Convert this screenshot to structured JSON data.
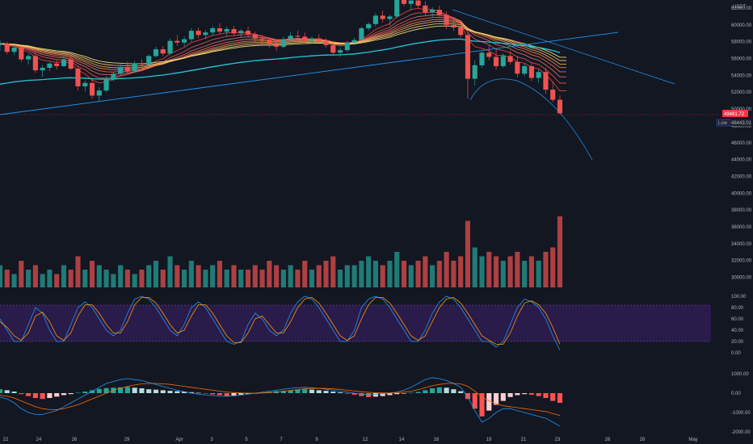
{
  "chart_data": {
    "type": "candlestick",
    "quote_currency": "USDT",
    "price_axis": {
      "min": 28000,
      "max": 63000,
      "ticks": [
        "62000.00",
        "60000.00",
        "58000.00",
        "56000.00",
        "54000.00",
        "52000.00",
        "50000.00",
        "48000.00",
        "46000.00",
        "44000.00",
        "42000.00",
        "40000.00",
        "38000.00",
        "36000.00",
        "34000.00",
        "32000.00",
        "30000.00"
      ]
    },
    "last_price_label": "49481.72",
    "low_label": "Low",
    "low_value_label": "48443.01",
    "time_axis": [
      "22",
      "24",
      "26",
      "29",
      "Apr",
      "3",
      "5",
      "7",
      "9",
      "12",
      "14",
      "16",
      "19",
      "21",
      "23",
      "26",
      "28",
      "May"
    ],
    "candles": [
      [
        57600,
        58200,
        56900,
        57800
      ],
      [
        57800,
        58000,
        56500,
        56800
      ],
      [
        56800,
        57600,
        56400,
        57300
      ],
      [
        57300,
        57500,
        55600,
        55900
      ],
      [
        55900,
        56600,
        55300,
        56300
      ],
      [
        56300,
        56700,
        54300,
        54600
      ],
      [
        54600,
        55200,
        53800,
        54900
      ],
      [
        54900,
        55600,
        54500,
        55400
      ],
      [
        55400,
        55800,
        54700,
        55100
      ],
      [
        55100,
        56200,
        55000,
        55900
      ],
      [
        55900,
        56300,
        54600,
        54800
      ],
      [
        54800,
        55100,
        52200,
        52700
      ],
      [
        52700,
        53400,
        52100,
        53100
      ],
      [
        53100,
        53600,
        51200,
        51600
      ],
      [
        51600,
        52600,
        50900,
        52200
      ],
      [
        52200,
        53900,
        52000,
        53600
      ],
      [
        53600,
        54400,
        53300,
        54200
      ],
      [
        54200,
        55300,
        54000,
        55000
      ],
      [
        55000,
        55600,
        54200,
        54500
      ],
      [
        54500,
        55700,
        54300,
        55400
      ],
      [
        55400,
        55900,
        54900,
        55300
      ],
      [
        55300,
        56500,
        55100,
        56300
      ],
      [
        56300,
        57400,
        56100,
        57100
      ],
      [
        57100,
        57500,
        56300,
        56600
      ],
      [
        56600,
        58400,
        56400,
        58100
      ],
      [
        58100,
        58800,
        57500,
        57900
      ],
      [
        57900,
        58600,
        57400,
        58300
      ],
      [
        58300,
        59600,
        58000,
        59300
      ],
      [
        59300,
        59700,
        58400,
        58800
      ],
      [
        58800,
        59400,
        58300,
        59100
      ],
      [
        59100,
        59900,
        58700,
        59600
      ],
      [
        59600,
        60200,
        58900,
        59200
      ],
      [
        59200,
        59800,
        58600,
        59500
      ],
      [
        59500,
        59900,
        58700,
        59000
      ],
      [
        59000,
        59500,
        58500,
        59300
      ],
      [
        59300,
        59800,
        58600,
        58900
      ],
      [
        58900,
        59200,
        57900,
        58400
      ],
      [
        58400,
        58800,
        57600,
        58200
      ],
      [
        58200,
        58500,
        57300,
        57700
      ],
      [
        57700,
        58100,
        56900,
        57400
      ],
      [
        57400,
        58600,
        57200,
        58300
      ],
      [
        58300,
        59100,
        58000,
        58700
      ],
      [
        58700,
        59300,
        58200,
        58600
      ],
      [
        58600,
        59100,
        57900,
        58100
      ],
      [
        58100,
        58600,
        57800,
        58400
      ],
      [
        58400,
        58900,
        57900,
        58100
      ],
      [
        58100,
        58400,
        57300,
        57600
      ],
      [
        57600,
        57900,
        56300,
        56700
      ],
      [
        56700,
        57300,
        56200,
        57000
      ],
      [
        57000,
        58100,
        56800,
        57900
      ],
      [
        57900,
        58500,
        57600,
        58200
      ],
      [
        58200,
        59800,
        58100,
        59600
      ],
      [
        59600,
        60300,
        59300,
        60100
      ],
      [
        60100,
        61400,
        59800,
        61100
      ],
      [
        61100,
        61700,
        60300,
        60700
      ],
      [
        60700,
        61200,
        59900,
        61000
      ],
      [
        61000,
        63300,
        60800,
        63000
      ],
      [
        63000,
        63600,
        62200,
        62500
      ],
      [
        62500,
        63200,
        61700,
        62900
      ],
      [
        62900,
        63400,
        62000,
        62300
      ],
      [
        62300,
        62800,
        61100,
        61500
      ],
      [
        61500,
        62100,
        60800,
        61800
      ],
      [
        61800,
        62300,
        61000,
        61200
      ],
      [
        61200,
        61600,
        59500,
        60000
      ],
      [
        60000,
        60800,
        59300,
        59700
      ],
      [
        59700,
        60400,
        58500,
        58800
      ],
      [
        58800,
        59200,
        51200,
        53600
      ],
      [
        53600,
        55800,
        52800,
        55200
      ],
      [
        55200,
        56900,
        54900,
        56700
      ],
      [
        56700,
        57600,
        55800,
        56200
      ],
      [
        56200,
        57100,
        54700,
        55100
      ],
      [
        55100,
        56600,
        54900,
        56300
      ],
      [
        56300,
        56900,
        55300,
        55600
      ],
      [
        55600,
        56300,
        53800,
        54200
      ],
      [
        54200,
        55400,
        53900,
        55100
      ],
      [
        55100,
        55600,
        53300,
        53700
      ],
      [
        53700,
        54700,
        53100,
        54400
      ],
      [
        54400,
        54900,
        51800,
        52300
      ],
      [
        52300,
        53300,
        50800,
        51100
      ],
      [
        51100,
        51600,
        49400,
        49500
      ]
    ],
    "volume": [
      5,
      4,
      3,
      6,
      4,
      5,
      3,
      4,
      3,
      5,
      4,
      7,
      4,
      6,
      5,
      4,
      3,
      5,
      4,
      3,
      4,
      5,
      6,
      4,
      7,
      5,
      4,
      6,
      5,
      4,
      5,
      6,
      4,
      5,
      4,
      4,
      5,
      4,
      6,
      5,
      4,
      5,
      4,
      6,
      4,
      5,
      6,
      7,
      4,
      5,
      5,
      6,
      7,
      6,
      5,
      6,
      8,
      6,
      5,
      6,
      7,
      5,
      6,
      8,
      6,
      7,
      15,
      9,
      7,
      8,
      7,
      6,
      7,
      8,
      6,
      7,
      6,
      8,
      9,
      16
    ],
    "stoch_rsi_axis": [
      "100.00",
      "80.00",
      "60.00",
      "40.00",
      "20.00",
      "0.00"
    ],
    "stoch_k": [
      60,
      40,
      20,
      20,
      50,
      80,
      70,
      40,
      20,
      20,
      50,
      80,
      90,
      80,
      60,
      40,
      30,
      40,
      70,
      95,
      100,
      95,
      80,
      60,
      40,
      30,
      50,
      80,
      90,
      80,
      60,
      40,
      20,
      15,
      20,
      50,
      70,
      60,
      40,
      30,
      40,
      70,
      90,
      100,
      95,
      80,
      60,
      40,
      20,
      20,
      40,
      80,
      95,
      100,
      95,
      80,
      60,
      40,
      20,
      20,
      40,
      70,
      90,
      100,
      95,
      80,
      60,
      40,
      20,
      20,
      10,
      20,
      50,
      80,
      95,
      90,
      80,
      60,
      30,
      5
    ],
    "stoch_d": [
      55,
      45,
      30,
      22,
      35,
      65,
      72,
      55,
      30,
      22,
      35,
      65,
      85,
      85,
      70,
      50,
      35,
      35,
      55,
      85,
      98,
      98,
      88,
      70,
      50,
      35,
      40,
      65,
      85,
      85,
      70,
      50,
      30,
      18,
      18,
      35,
      60,
      65,
      50,
      35,
      35,
      55,
      80,
      95,
      98,
      88,
      70,
      50,
      30,
      22,
      30,
      60,
      85,
      98,
      98,
      88,
      70,
      50,
      30,
      22,
      30,
      55,
      80,
      95,
      98,
      88,
      70,
      50,
      30,
      22,
      15,
      15,
      35,
      65,
      88,
      92,
      85,
      70,
      45,
      15
    ],
    "macd_axis": [
      "1000.00",
      "0.00",
      "-1000.00",
      "-2000.00"
    ],
    "macd_hist": [
      200,
      150,
      80,
      -50,
      -150,
      -250,
      -300,
      -250,
      -180,
      -100,
      -50,
      20,
      80,
      150,
      220,
      260,
      280,
      300,
      320,
      280,
      250,
      200,
      180,
      150,
      120,
      100,
      80,
      50,
      20,
      -20,
      -60,
      -100,
      -150,
      -120,
      -80,
      -50,
      -20,
      20,
      60,
      100,
      120,
      150,
      180,
      200,
      180,
      150,
      120,
      80,
      40,
      -20,
      -80,
      -150,
      -200,
      -180,
      -150,
      -100,
      -50,
      -20,
      20,
      60,
      150,
      250,
      300,
      280,
      200,
      100,
      -300,
      -800,
      -1200,
      -900,
      -600,
      -400,
      -200,
      -100,
      -50,
      -80,
      -150,
      -250,
      -400,
      -500
    ],
    "macd_line": [
      -200,
      -300,
      -500,
      -800,
      -1000,
      -1100,
      -1100,
      -1000,
      -900,
      -700,
      -500,
      -300,
      -100,
      100,
      300,
      500,
      600,
      700,
      750,
      700,
      650,
      550,
      450,
      350,
      250,
      150,
      80,
      0,
      -50,
      -100,
      -120,
      -150,
      -160,
      -140,
      -100,
      -50,
      0,
      50,
      100,
      150,
      200,
      250,
      280,
      300,
      280,
      250,
      200,
      150,
      100,
      50,
      0,
      -50,
      -80,
      -60,
      -30,
      0,
      50,
      150,
      300,
      500,
      700,
      800,
      750,
      650,
      500,
      300,
      -200,
      -900,
      -1500,
      -1300,
      -1000,
      -800,
      -800,
      -900,
      -1000,
      -1100,
      -1200,
      -1300,
      -1500,
      -1700
    ],
    "macd_signal": [
      -100,
      -150,
      -250,
      -400,
      -550,
      -700,
      -800,
      -850,
      -850,
      -800,
      -700,
      -600,
      -450,
      -300,
      -150,
      0,
      150,
      250,
      350,
      420,
      480,
      500,
      500,
      480,
      450,
      400,
      350,
      300,
      250,
      200,
      150,
      100,
      60,
      30,
      10,
      0,
      0,
      10,
      30,
      60,
      100,
      140,
      180,
      220,
      240,
      250,
      240,
      220,
      190,
      150,
      110,
      70,
      40,
      20,
      10,
      10,
      20,
      50,
      100,
      180,
      280,
      380,
      450,
      500,
      500,
      480,
      350,
      100,
      -200,
      -400,
      -550,
      -650,
      -700,
      -750,
      -800,
      -850,
      -900,
      -950,
      -1050,
      -1150
    ]
  }
}
